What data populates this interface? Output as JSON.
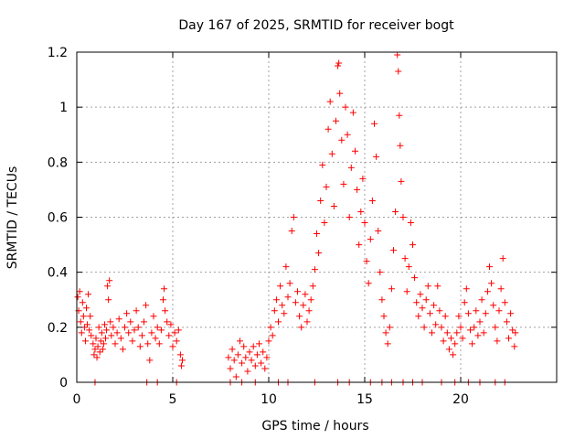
{
  "chart_data": {
    "type": "scatter",
    "title": "Day 167 of 2025, SRMTID for receiver bogt",
    "xlabel": "GPS time / hours",
    "ylabel": "SRMTID / TECUs",
    "xlim": [
      0,
      25
    ],
    "ylim": [
      0,
      1.2
    ],
    "xticks": [
      0,
      5,
      10,
      15,
      20
    ],
    "xtick_labels": [
      "0",
      "5",
      "10",
      "15",
      "20"
    ],
    "yticks": [
      0,
      0.2,
      0.4,
      0.6,
      0.8,
      1.0,
      1.2
    ],
    "ytick_labels": [
      "0",
      "0.2",
      "0.4",
      "0.6",
      "0.8",
      "1",
      "1.2"
    ],
    "grid": true,
    "marker": "+",
    "color": "#ff0000",
    "series": [
      {
        "name": "SRMTID",
        "points": [
          [
            0.05,
            0.31
          ],
          [
            0.1,
            0.26
          ],
          [
            0.15,
            0.33
          ],
          [
            0.2,
            0.22
          ],
          [
            0.25,
            0.18
          ],
          [
            0.3,
            0.29
          ],
          [
            0.35,
            0.24
          ],
          [
            0.4,
            0.2
          ],
          [
            0.45,
            0.15
          ],
          [
            0.5,
            0.27
          ],
          [
            0.55,
            0.21
          ],
          [
            0.6,
            0.32
          ],
          [
            0.65,
            0.19
          ],
          [
            0.7,
            0.24
          ],
          [
            0.75,
            0.17
          ],
          [
            0.85,
            0.14
          ],
          [
            0.9,
            0.1
          ],
          [
            0.95,
            0.12
          ],
          [
            1.0,
            0.16
          ],
          [
            1.05,
            0.09
          ],
          [
            1.1,
            0.13
          ],
          [
            1.15,
            0.2
          ],
          [
            1.2,
            0.11
          ],
          [
            1.25,
            0.15
          ],
          [
            1.3,
            0.18
          ],
          [
            1.35,
            0.12
          ],
          [
            1.4,
            0.14
          ],
          [
            1.45,
            0.21
          ],
          [
            1.5,
            0.16
          ],
          [
            1.55,
            0.19
          ],
          [
            1.6,
            0.35
          ],
          [
            1.65,
            0.3
          ],
          [
            1.7,
            0.37
          ],
          [
            1.75,
            0.22
          ],
          [
            1.8,
            0.17
          ],
          [
            1.9,
            0.2
          ],
          [
            2.0,
            0.14
          ],
          [
            2.1,
            0.18
          ],
          [
            2.2,
            0.23
          ],
          [
            2.3,
            0.16
          ],
          [
            2.4,
            0.12
          ],
          [
            2.5,
            0.2
          ],
          [
            2.6,
            0.25
          ],
          [
            2.7,
            0.18
          ],
          [
            2.8,
            0.22
          ],
          [
            2.9,
            0.15
          ],
          [
            3.0,
            0.19
          ],
          [
            3.1,
            0.26
          ],
          [
            3.2,
            0.2
          ],
          [
            3.3,
            0.13
          ],
          [
            3.4,
            0.17
          ],
          [
            3.5,
            0.22
          ],
          [
            3.6,
            0.28
          ],
          [
            3.7,
            0.14
          ],
          [
            3.8,
            0.08
          ],
          [
            3.9,
            0.18
          ],
          [
            4.0,
            0.24
          ],
          [
            4.1,
            0.16
          ],
          [
            4.2,
            0.2
          ],
          [
            4.3,
            0.14
          ],
          [
            4.4,
            0.19
          ],
          [
            4.5,
            0.3
          ],
          [
            4.55,
            0.34
          ],
          [
            4.6,
            0.26
          ],
          [
            4.7,
            0.22
          ],
          [
            4.8,
            0.17
          ],
          [
            4.9,
            0.21
          ],
          [
            5.0,
            0.13
          ],
          [
            5.1,
            0.18
          ],
          [
            5.2,
            0.15
          ],
          [
            5.3,
            0.19
          ],
          [
            5.4,
            0.1
          ],
          [
            5.45,
            0.06
          ],
          [
            5.5,
            0.08
          ],
          [
            7.9,
            0.09
          ],
          [
            8.0,
            0.05
          ],
          [
            8.1,
            0.12
          ],
          [
            8.2,
            0.08
          ],
          [
            8.3,
            0.02
          ],
          [
            8.4,
            0.1
          ],
          [
            8.5,
            0.15
          ],
          [
            8.6,
            0.07
          ],
          [
            8.7,
            0.13
          ],
          [
            8.8,
            0.09
          ],
          [
            8.9,
            0.04
          ],
          [
            9.0,
            0.11
          ],
          [
            9.1,
            0.08
          ],
          [
            9.2,
            0.13
          ],
          [
            9.3,
            0.06
          ],
          [
            9.4,
            0.1
          ],
          [
            9.5,
            0.14
          ],
          [
            9.6,
            0.07
          ],
          [
            9.7,
            0.11
          ],
          [
            9.8,
            0.05
          ],
          [
            9.9,
            0.09
          ],
          [
            10.0,
            0.15
          ],
          [
            10.1,
            0.2
          ],
          [
            10.2,
            0.17
          ],
          [
            10.3,
            0.26
          ],
          [
            10.4,
            0.3
          ],
          [
            10.5,
            0.22
          ],
          [
            10.6,
            0.35
          ],
          [
            10.7,
            0.28
          ],
          [
            10.8,
            0.25
          ],
          [
            10.9,
            0.42
          ],
          [
            11.0,
            0.31
          ],
          [
            11.1,
            0.36
          ],
          [
            11.2,
            0.55
          ],
          [
            11.3,
            0.6
          ],
          [
            11.4,
            0.29
          ],
          [
            11.5,
            0.33
          ],
          [
            11.6,
            0.24
          ],
          [
            11.7,
            0.2
          ],
          [
            11.8,
            0.28
          ],
          [
            11.9,
            0.32
          ],
          [
            12.0,
            0.22
          ],
          [
            12.1,
            0.26
          ],
          [
            12.2,
            0.3
          ],
          [
            12.3,
            0.35
          ],
          [
            12.4,
            0.41
          ],
          [
            12.5,
            0.54
          ],
          [
            12.6,
            0.47
          ],
          [
            12.7,
            0.66
          ],
          [
            12.8,
            0.79
          ],
          [
            12.9,
            0.58
          ],
          [
            13.0,
            0.71
          ],
          [
            13.1,
            0.92
          ],
          [
            13.2,
            1.02
          ],
          [
            13.3,
            0.83
          ],
          [
            13.4,
            0.64
          ],
          [
            13.5,
            0.95
          ],
          [
            13.6,
            1.15
          ],
          [
            13.65,
            1.16
          ],
          [
            13.7,
            1.05
          ],
          [
            13.8,
            0.88
          ],
          [
            13.9,
            0.72
          ],
          [
            14.0,
            1.0
          ],
          [
            14.1,
            0.9
          ],
          [
            14.2,
            0.6
          ],
          [
            14.3,
            0.78
          ],
          [
            14.4,
            0.98
          ],
          [
            14.5,
            0.84
          ],
          [
            14.6,
            0.7
          ],
          [
            14.7,
            0.5
          ],
          [
            14.8,
            0.62
          ],
          [
            14.9,
            0.74
          ],
          [
            15.0,
            0.58
          ],
          [
            15.1,
            0.44
          ],
          [
            15.2,
            0.36
          ],
          [
            15.3,
            0.52
          ],
          [
            15.4,
            0.66
          ],
          [
            15.5,
            0.94
          ],
          [
            15.6,
            0.82
          ],
          [
            15.7,
            0.55
          ],
          [
            15.8,
            0.4
          ],
          [
            15.9,
            0.3
          ],
          [
            16.0,
            0.24
          ],
          [
            16.1,
            0.18
          ],
          [
            16.2,
            0.14
          ],
          [
            16.3,
            0.2
          ],
          [
            16.4,
            0.34
          ],
          [
            16.5,
            0.48
          ],
          [
            16.6,
            0.62
          ],
          [
            16.7,
            1.19
          ],
          [
            16.75,
            1.13
          ],
          [
            16.8,
            0.97
          ],
          [
            16.85,
            0.86
          ],
          [
            16.9,
            0.73
          ],
          [
            17.0,
            0.6
          ],
          [
            17.1,
            0.45
          ],
          [
            17.2,
            0.33
          ],
          [
            17.3,
            0.42
          ],
          [
            17.4,
            0.58
          ],
          [
            17.5,
            0.5
          ],
          [
            17.6,
            0.38
          ],
          [
            17.7,
            0.29
          ],
          [
            17.8,
            0.24
          ],
          [
            17.9,
            0.32
          ],
          [
            18.0,
            0.27
          ],
          [
            18.1,
            0.2
          ],
          [
            18.2,
            0.3
          ],
          [
            18.3,
            0.35
          ],
          [
            18.4,
            0.25
          ],
          [
            18.5,
            0.18
          ],
          [
            18.6,
            0.28
          ],
          [
            18.7,
            0.21
          ],
          [
            18.8,
            0.35
          ],
          [
            18.9,
            0.26
          ],
          [
            19.0,
            0.2
          ],
          [
            19.1,
            0.15
          ],
          [
            19.2,
            0.24
          ],
          [
            19.3,
            0.18
          ],
          [
            19.4,
            0.12
          ],
          [
            19.5,
            0.16
          ],
          [
            19.6,
            0.1
          ],
          [
            19.7,
            0.14
          ],
          [
            19.8,
            0.18
          ],
          [
            19.9,
            0.24
          ],
          [
            20.0,
            0.2
          ],
          [
            20.1,
            0.16
          ],
          [
            20.2,
            0.29
          ],
          [
            20.3,
            0.34
          ],
          [
            20.4,
            0.25
          ],
          [
            20.5,
            0.19
          ],
          [
            20.6,
            0.14
          ],
          [
            20.7,
            0.2
          ],
          [
            20.8,
            0.26
          ],
          [
            20.9,
            0.17
          ],
          [
            21.0,
            0.22
          ],
          [
            21.1,
            0.3
          ],
          [
            21.2,
            0.18
          ],
          [
            21.3,
            0.25
          ],
          [
            21.4,
            0.33
          ],
          [
            21.5,
            0.42
          ],
          [
            21.6,
            0.36
          ],
          [
            21.7,
            0.28
          ],
          [
            21.8,
            0.2
          ],
          [
            21.9,
            0.15
          ],
          [
            22.0,
            0.26
          ],
          [
            22.1,
            0.34
          ],
          [
            22.2,
            0.45
          ],
          [
            22.3,
            0.29
          ],
          [
            22.4,
            0.22
          ],
          [
            22.5,
            0.16
          ],
          [
            22.6,
            0.25
          ],
          [
            22.7,
            0.19
          ],
          [
            22.8,
            0.13
          ],
          [
            22.85,
            0.18
          ],
          [
            0.95,
            0.0
          ],
          [
            3.65,
            0.0
          ],
          [
            4.2,
            0.0
          ],
          [
            5.2,
            0.0
          ],
          [
            8.0,
            0.0
          ],
          [
            8.6,
            0.0
          ],
          [
            9.3,
            0.0
          ],
          [
            10.5,
            0.0
          ],
          [
            11.0,
            0.0
          ],
          [
            12.4,
            0.0
          ],
          [
            13.6,
            0.0
          ],
          [
            14.2,
            0.0
          ],
          [
            15.3,
            0.0
          ],
          [
            15.9,
            0.0
          ],
          [
            16.4,
            0.0
          ],
          [
            17.0,
            0.0
          ],
          [
            17.5,
            0.0
          ],
          [
            18.0,
            0.0
          ],
          [
            19.0,
            0.0
          ],
          [
            19.7,
            0.0
          ],
          [
            20.4,
            0.0
          ],
          [
            21.0,
            0.0
          ],
          [
            21.8,
            0.0
          ],
          [
            22.3,
            0.0
          ]
        ]
      }
    ]
  }
}
